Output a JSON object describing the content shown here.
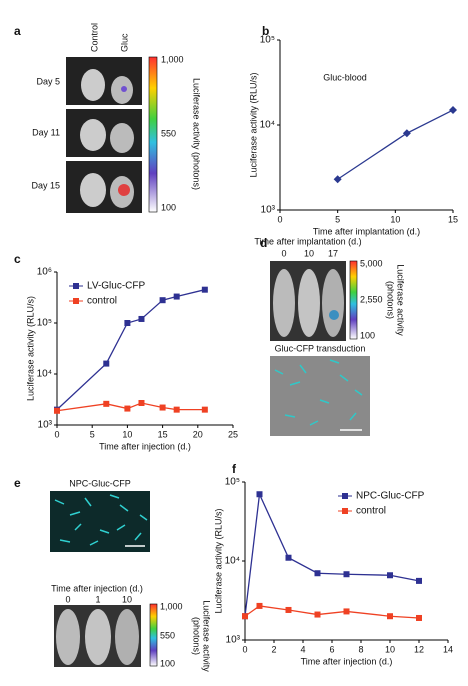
{
  "figure": {
    "a": {
      "label": "a",
      "columns": [
        "Control",
        "Gluc"
      ],
      "rows": [
        "Day 5",
        "Day 11",
        "Day 15"
      ],
      "colorbar_ticks": [
        "1,000",
        "550",
        "100"
      ],
      "colorbar_label": "Luciferase activity (photons)"
    },
    "d": {
      "label": "d",
      "title": "Time after implantation (d.)",
      "columns": [
        "0",
        "10",
        "17"
      ],
      "colorbar_ticks": [
        "5,000",
        "2,550",
        "100"
      ],
      "colorbar_label": [
        "Luciferase activity",
        "(photons)"
      ],
      "transduction_label": "Gluc-CFP transduction"
    },
    "e": {
      "label": "e",
      "title": "NPC-Gluc-CFP",
      "subtitle": "Time after injection (d.)",
      "columns": [
        "0",
        "1",
        "10"
      ],
      "colorbar_ticks": [
        "1,000",
        "550",
        "100"
      ],
      "colorbar_label": [
        "Luciferase activity",
        "(photons)"
      ]
    }
  },
  "chart_data": [
    {
      "type": "line",
      "panel_label": "b",
      "title": "Gluc-blood",
      "x_label": "Time after implantation (d.)",
      "y_label": "Luciferase activity (RLU/s)",
      "yscale": "log",
      "marker": "diamond",
      "xlim": [
        0,
        15
      ],
      "xticks": [
        0,
        5,
        10,
        15
      ],
      "ylim": [
        1000,
        100000
      ],
      "yticks": [
        {
          "value": 1000,
          "label": "10³"
        },
        {
          "value": 10000,
          "label": "10⁴"
        },
        {
          "value": 100000,
          "label": "10⁵"
        }
      ],
      "x": [
        5,
        11,
        15
      ],
      "series": [
        {
          "color": "#2b3990",
          "values": [
            2300,
            8000,
            15000
          ]
        }
      ]
    },
    {
      "type": "line",
      "panel_label": "c",
      "x_label": "Time after injection (d.)",
      "y_label": "Luciferase activity (RLU/s)",
      "yscale": "log",
      "marker": "square",
      "legend": "upper-left",
      "xlim": [
        0,
        25
      ],
      "xticks": [
        0,
        5,
        10,
        15,
        20,
        25
      ],
      "ylim": [
        1000,
        1000000
      ],
      "yticks": [
        {
          "value": 1000,
          "label": "10³"
        },
        {
          "value": 10000,
          "label": "10⁴"
        },
        {
          "value": 100000,
          "label": "10⁵"
        },
        {
          "value": 1000000,
          "label": "10⁶"
        }
      ],
      "x": [
        0,
        7,
        10,
        12,
        15,
        17,
        21
      ],
      "series": [
        {
          "name": "LV-Gluc-CFP",
          "color": "#2e3192",
          "values": [
            2000,
            16000,
            100000,
            120000,
            280000,
            330000,
            450000
          ]
        },
        {
          "name": "control",
          "color": "#ef4123",
          "values": [
            1900,
            2600,
            2100,
            2700,
            2200,
            2000,
            2000
          ]
        }
      ]
    },
    {
      "type": "line",
      "panel_label": "f",
      "x_label": "Time after injection (d.)",
      "y_label": "Luciferase activity (RLU/s)",
      "yscale": "log",
      "marker": "square",
      "legend": "upper-right",
      "xlim": [
        0,
        14
      ],
      "xticks": [
        0,
        2,
        4,
        6,
        8,
        10,
        12,
        14
      ],
      "ylim": [
        1000,
        100000
      ],
      "yticks": [
        {
          "value": 1000,
          "label": "10³"
        },
        {
          "value": 10000,
          "label": "10⁴"
        },
        {
          "value": 100000,
          "label": "10⁵"
        }
      ],
      "x": [
        0,
        1,
        3,
        5,
        7,
        10,
        12
      ],
      "series": [
        {
          "name": "NPC-Gluc-CFP",
          "color": "#2e3192",
          "values": [
            2000,
            70000,
            11000,
            7000,
            6800,
            6600,
            5600
          ]
        },
        {
          "name": "control",
          "color": "#ef4123",
          "values": [
            2000,
            2700,
            2400,
            2100,
            2300,
            2000,
            1900
          ]
        }
      ]
    }
  ]
}
